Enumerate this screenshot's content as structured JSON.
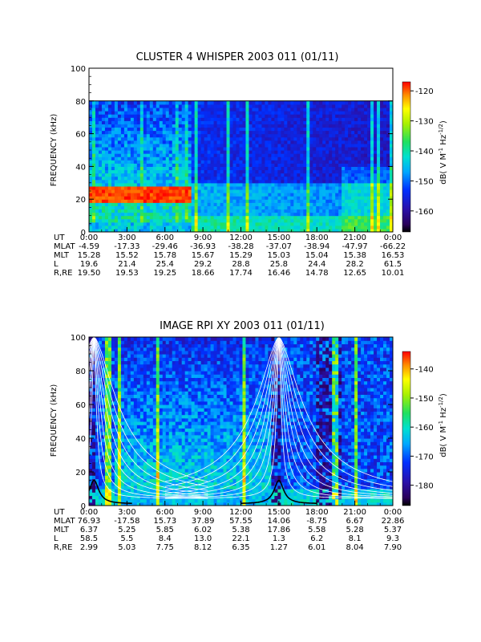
{
  "chart_data": [
    {
      "type": "heatmap",
      "title": "CLUSTER 4 WHISPER 2003 011 (01/11)",
      "ylabel": "FREQUENCY (kHz)",
      "ylim": [
        0,
        100
      ],
      "yticks": [
        "0",
        "20",
        "40",
        "60",
        "80",
        "100"
      ],
      "data_ceiling_khz": 80,
      "xlim_hours": [
        0,
        24
      ],
      "colorbar": {
        "label": "dB( V M⁻¹ Hz⁻¹ᐟ²)",
        "label_parts": [
          "dB( V M",
          "-1",
          " Hz",
          "-1/2",
          ")"
        ],
        "range": [
          -167,
          -117
        ],
        "ticks": [
          "-120",
          "-130",
          "-140",
          "-150",
          "-160"
        ]
      },
      "ephemeris": {
        "row_labels": [
          "UT",
          "MLAT",
          "MLT",
          "L",
          "R,RE"
        ],
        "columns": [
          [
            "0:00",
            "-4.59",
            "15.28",
            "19.6",
            "19.50"
          ],
          [
            "3:00",
            "-17.33",
            "15.52",
            "21.4",
            "19.53"
          ],
          [
            "6:00",
            "-29.46",
            "15.78",
            "25.4",
            "19.25"
          ],
          [
            "9:00",
            "-36.93",
            "15.67",
            "29.2",
            "18.66"
          ],
          [
            "12:00",
            "-38.28",
            "15.29",
            "28.8",
            "17.74"
          ],
          [
            "15:00",
            "-37.07",
            "15.03",
            "25.8",
            "16.46"
          ],
          [
            "18:00",
            "-38.94",
            "15.04",
            "24.4",
            "14.78"
          ],
          [
            "21:00",
            "-47.97",
            "15.38",
            "28.2",
            "12.65"
          ],
          [
            "0:00",
            "-66.22",
            "16.53",
            "61.5",
            "10.01"
          ]
        ]
      }
    },
    {
      "type": "heatmap",
      "title": "IMAGE RPI XY 2003 011 (01/11)",
      "ylabel": "FREQUENCY (kHz)",
      "ylim": [
        0,
        100
      ],
      "yticks": [
        "0",
        "20",
        "40",
        "60",
        "80",
        "100"
      ],
      "xlim_hours": [
        0,
        24
      ],
      "colorbar": {
        "label": "dB( V M⁻¹ Hz⁻¹ᐟ²)",
        "label_parts": [
          "dB( V M",
          "-1",
          " Hz",
          "-1/2",
          ")"
        ],
        "range": [
          -187,
          -134
        ],
        "ticks": [
          "-140",
          "-150",
          "-160",
          "-170",
          "-180"
        ]
      },
      "ephemeris": {
        "row_labels": [
          "UT",
          "MLAT",
          "MLT",
          "L",
          "R,RE"
        ],
        "columns": [
          [
            "0:00",
            "76.93",
            "6.37",
            "58.5",
            "2.99"
          ],
          [
            "3:00",
            "-17.58",
            "5.25",
            "5.5",
            "5.03"
          ],
          [
            "6:00",
            "15.73",
            "5.85",
            "8.4",
            "7.75"
          ],
          [
            "9:00",
            "37.89",
            "6.02",
            "13.0",
            "8.12"
          ],
          [
            "12:00",
            "57.55",
            "5.38",
            "22.1",
            "6.35"
          ],
          [
            "15:00",
            "14.06",
            "17.86",
            "1.3",
            "1.27"
          ],
          [
            "18:00",
            "-8.75",
            "5.58",
            "6.2",
            "6.01"
          ],
          [
            "21:00",
            "6.67",
            "5.28",
            "8.1",
            "8.04"
          ],
          [
            "0:00",
            "22.86",
            "5.37",
            "9.3",
            "7.90"
          ]
        ]
      }
    }
  ]
}
